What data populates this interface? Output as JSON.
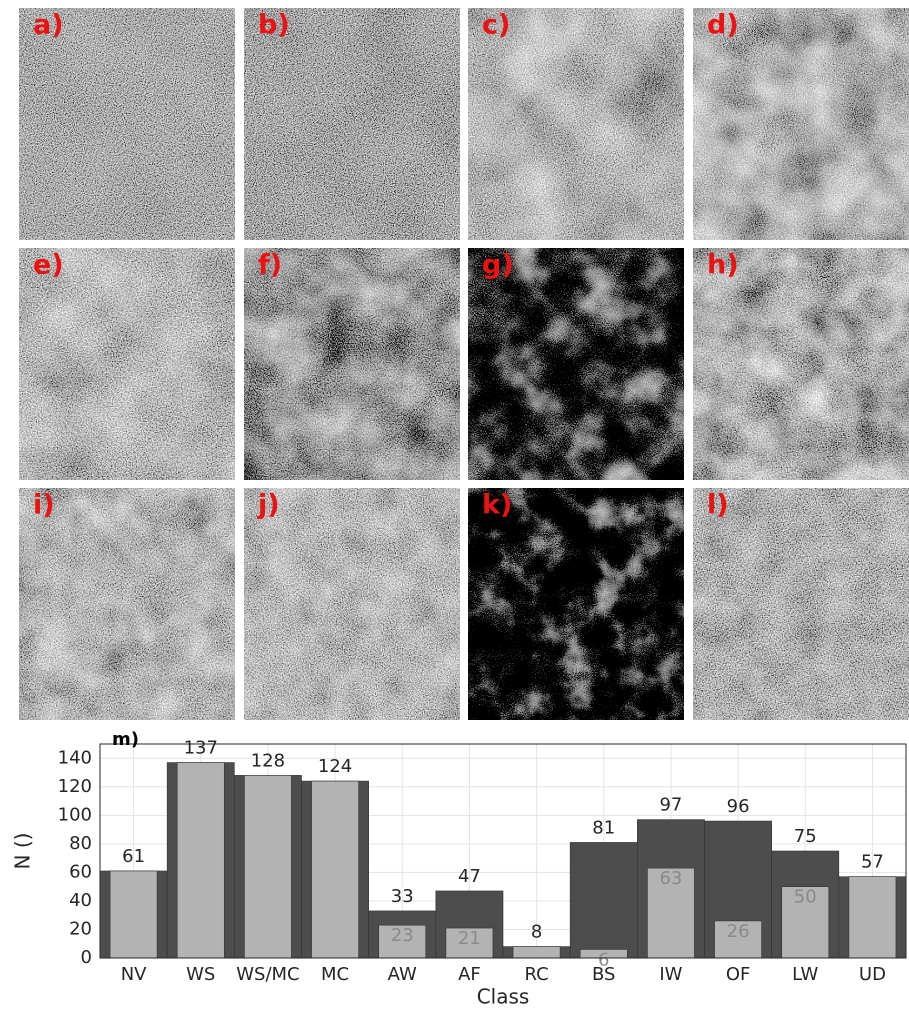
{
  "panels": [
    "a)",
    "b)",
    "c)",
    "d)",
    "e)",
    "f)",
    "g)",
    "h)",
    "i)",
    "j)",
    "k)",
    "l)"
  ],
  "chart_data": {
    "type": "bar",
    "panel_label": "m)",
    "x_label": "Class",
    "y_label": "N ()",
    "categories": [
      "NV",
      "WS",
      "WS/MC",
      "MC",
      "AW",
      "AF",
      "RC",
      "BS",
      "IW",
      "OF",
      "LW",
      "UD"
    ],
    "series": [
      {
        "color": "#4d4d4d",
        "values": [
          61,
          137,
          128,
          124,
          33,
          47,
          8,
          81,
          97,
          96,
          75,
          57
        ]
      },
      {
        "color": "#b3b3b3",
        "values": [
          61,
          137,
          128,
          124,
          23,
          21,
          8,
          6,
          63,
          26,
          50,
          57
        ],
        "value_labels": [
          null,
          null,
          null,
          null,
          23,
          21,
          null,
          6,
          63,
          26,
          50,
          null
        ]
      }
    ],
    "ylim": [
      0,
      150
    ],
    "yticks": [
      0,
      20,
      40,
      60,
      80,
      100,
      120,
      140
    ],
    "grid": true
  }
}
